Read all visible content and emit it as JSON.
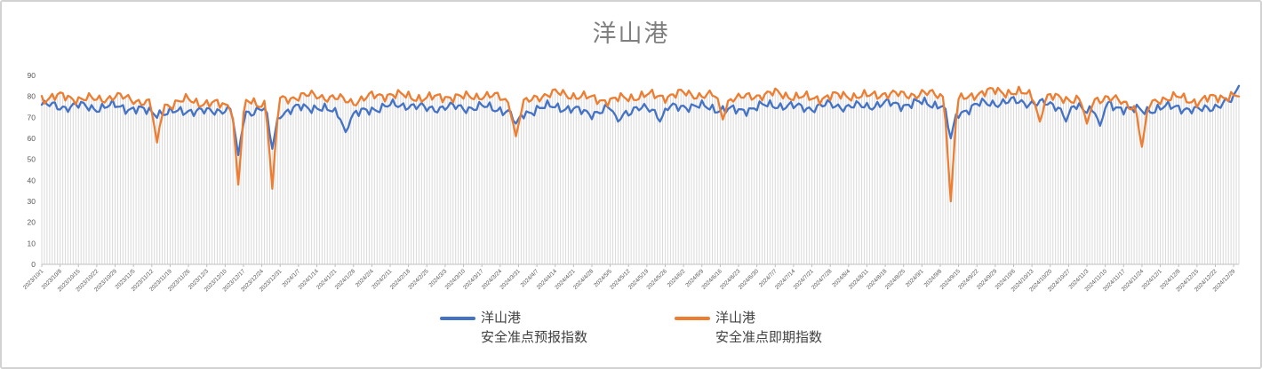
{
  "chart": {
    "title": "洋山港",
    "legend": [
      {
        "label_line1": "洋山港",
        "label_line2": "安全准点预报指数",
        "color": "#4472C4"
      },
      {
        "label_line1": "洋山港",
        "label_line2": "安全准点即期指数",
        "color": "#ED7D31"
      }
    ]
  },
  "chart_data": {
    "type": "line",
    "title": "洋山港",
    "x_start_date": "2023/10/01",
    "x_end_date": "2024/12/31",
    "x_tick_interval_days": 7,
    "x_tick_labels": [
      "2023/10/1",
      "2023/10/8",
      "2023/10/15",
      "2023/10/22",
      "2023/10/29",
      "2023/11/5",
      "2023/11/12",
      "2023/11/19",
      "2023/11/26",
      "2023/12/3",
      "2023/12/10",
      "2023/12/17",
      "2023/12/24",
      "2023/12/31",
      "2024/1/7",
      "2024/1/14",
      "2024/1/21",
      "2024/1/28",
      "2024/2/4",
      "2024/2/11",
      "2024/2/18",
      "2024/2/25",
      "2024/3/3",
      "2024/3/10",
      "2024/3/17",
      "2024/3/24",
      "2024/3/31",
      "2024/4/7",
      "2024/4/14",
      "2024/4/21",
      "2024/4/28",
      "2024/5/5",
      "2024/5/12",
      "2024/5/19",
      "2024/5/26",
      "2024/6/2",
      "2024/6/9",
      "2024/6/16",
      "2024/6/23",
      "2024/6/30",
      "2024/7/7",
      "2024/7/14",
      "2024/7/21",
      "2024/7/28",
      "2024/8/4",
      "2024/8/11",
      "2024/8/18",
      "2024/8/25",
      "2024/9/1",
      "2024/9/8",
      "2024/9/15",
      "2024/9/22",
      "2024/9/29",
      "2024/10/6",
      "2024/10/13",
      "2024/10/20",
      "2024/10/27",
      "2024/11/3",
      "2024/11/10",
      "2024/11/17",
      "2024/11/24",
      "2024/12/1",
      "2024/12/8",
      "2024/12/15",
      "2024/12/22",
      "2024/12/29"
    ],
    "ylim": [
      0,
      90
    ],
    "y_ticks": [
      0,
      10,
      20,
      30,
      40,
      50,
      60,
      70,
      80,
      90
    ],
    "grid": {
      "horizontal": false,
      "vertical_drop_lines": true,
      "drop_line_color": "#dcdcdc"
    },
    "legend_position": "bottom",
    "series": [
      {
        "name": "洋山港 安全准点预报指数",
        "color": "#4472C4",
        "weekly_values": [
          76,
          75,
          75.5,
          74.5,
          75.5,
          74,
          72.5,
          72,
          73.5,
          72.5,
          74,
          72,
          74,
          72,
          74.5,
          75,
          72,
          71,
          74,
          75.5,
          76,
          74,
          75,
          74.5,
          75,
          74,
          71,
          74,
          75.5,
          73.5,
          72,
          74,
          72.5,
          74.5,
          74,
          75.5,
          75,
          74,
          73,
          75,
          76,
          75,
          74.5,
          76,
          75,
          75.5,
          76.5,
          76,
          77,
          76,
          72,
          76,
          77,
          77.5,
          77,
          76,
          75,
          74,
          76,
          74.5,
          73,
          74.5,
          75,
          73,
          75.5,
          78
        ]
      },
      {
        "name": "洋山港 安全准点即期指数",
        "color": "#ED7D31",
        "weekly_values": [
          79,
          80,
          79,
          78.5,
          80,
          78.5,
          76.5,
          76,
          78.5,
          76.5,
          76,
          77.5,
          76.5,
          78.5,
          80,
          80.5,
          79,
          77.5,
          80,
          81,
          80,
          79,
          80,
          79.5,
          80.5,
          79.5,
          75,
          80,
          81.5,
          80.5,
          79,
          78,
          79.5,
          80.5,
          80,
          81.5,
          80.5,
          80,
          79,
          80.5,
          81.5,
          80,
          79,
          80,
          80.5,
          80,
          81.5,
          80.5,
          81.5,
          80.5,
          78,
          81.5,
          82.5,
          82,
          80.5,
          79.5,
          79,
          78,
          79.5,
          77,
          74,
          79,
          79.5,
          77.5,
          79.5,
          80.5
        ]
      }
    ],
    "anomalies": [
      {
        "date": "2023/11/14",
        "series": 1,
        "value": 58
      },
      {
        "date": "2023/12/15",
        "series": 0,
        "value": 52
      },
      {
        "date": "2023/12/15",
        "series": 1,
        "value": 38
      },
      {
        "date": "2023/12/28",
        "series": 0,
        "value": 55
      },
      {
        "date": "2023/12/28",
        "series": 1,
        "value": 36
      },
      {
        "date": "2024/1/25",
        "series": 0,
        "value": 63
      },
      {
        "date": "2024/3/30",
        "series": 0,
        "value": 67
      },
      {
        "date": "2024/3/30",
        "series": 1,
        "value": 61
      },
      {
        "date": "2024/5/8",
        "series": 0,
        "value": 68
      },
      {
        "date": "2024/5/24",
        "series": 0,
        "value": 68
      },
      {
        "date": "2024/6/17",
        "series": 1,
        "value": 69
      },
      {
        "date": "2024/9/12",
        "series": 0,
        "value": 60
      },
      {
        "date": "2024/9/12",
        "series": 1,
        "value": 30
      },
      {
        "date": "2024/10/16",
        "series": 1,
        "value": 68
      },
      {
        "date": "2024/10/26",
        "series": 0,
        "value": 68
      },
      {
        "date": "2024/11/3",
        "series": 1,
        "value": 67
      },
      {
        "date": "2024/11/8",
        "series": 0,
        "value": 66
      },
      {
        "date": "2024/11/24",
        "series": 1,
        "value": 56
      },
      {
        "date": "2024/12/31",
        "series": 0,
        "value": 85
      },
      {
        "date": "2024/12/31",
        "series": 1,
        "value": 80
      }
    ],
    "noise_amplitude": 1.5,
    "axis_color": "#bfbfbf",
    "tick_label_color": "#595959"
  }
}
